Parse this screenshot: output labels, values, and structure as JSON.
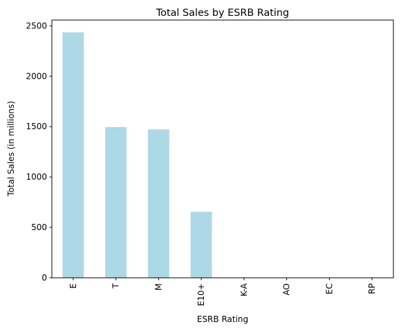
{
  "chart_data": {
    "type": "bar",
    "title": "Total Sales by ESRB Rating",
    "xlabel": "ESRB Rating",
    "ylabel": "Total Sales (in millions)",
    "categories": [
      "E",
      "T",
      "M",
      "E10+",
      "K-A",
      "AO",
      "EC",
      "RP"
    ],
    "values": [
      2435,
      1495,
      1472,
      655,
      3,
      2,
      2,
      0.1
    ],
    "ylim": [
      0,
      2557
    ],
    "yticks": [
      0,
      500,
      1000,
      1500,
      2000,
      2500
    ],
    "ytick_labels": [
      "0",
      "500",
      "1000",
      "1500",
      "2000",
      "2500"
    ],
    "grid": false,
    "legend": "none",
    "bar_color": "#add8e6",
    "axis_color": "#000000"
  }
}
